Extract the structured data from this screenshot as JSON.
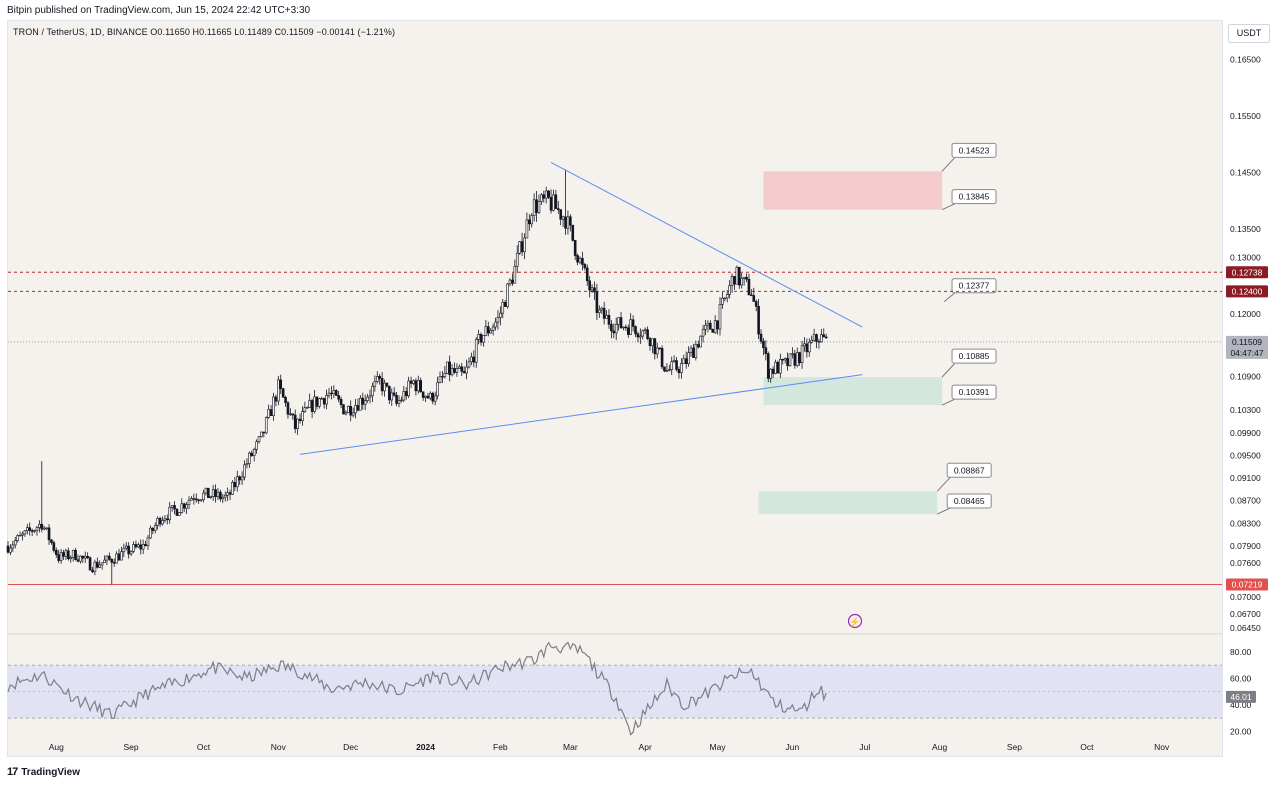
{
  "publisher_line": "Bitpin published on TradingView.com, Jun 15, 2024 22:42 UTC+3:30",
  "legend": "TRON / TetherUS, 1D, BINANCE  O0.11650  H0.11665  L0.11489  C0.11509  −0.00141 (−1.21%)",
  "currency_button": "USDT",
  "footer_logo": "17",
  "footer_brand": "TradingView",
  "colors": {
    "up": "#131722",
    "down": "#131722",
    "trendline": "#5b8def",
    "supply_zone": "#f4c7c9",
    "demand_zone": "#cfe5dc",
    "rsi_band": "#e1e2f3",
    "rsi_line": "#7e7e87",
    "level_dashed": "#b22833",
    "support_line": "#e25050"
  },
  "chart_data": [
    {
      "type": "candlestick",
      "title": "TRON / TetherUS, 1D, BINANCE",
      "ylim": [
        0.0638,
        0.1718
      ],
      "y_ticks": [
        "0.16500",
        "0.15500",
        "0.14500",
        "0.13500",
        "0.13000",
        "0.12000",
        "0.10900",
        "0.10300",
        "0.09900",
        "0.09500",
        "0.09100",
        "0.08700",
        "0.08300",
        "0.07900",
        "0.07600",
        "0.07200",
        "0.07000",
        "0.06700",
        "0.06450"
      ],
      "x_ticks": [
        "Aug",
        "Sep",
        "Oct",
        "Nov",
        "Dec",
        "2024",
        "Feb",
        "Mar",
        "Apr",
        "May",
        "Jun",
        "Jul",
        "Aug",
        "Sep",
        "Oct",
        "Nov"
      ],
      "x_tick_bold": "2024",
      "x_range": [
        "2023-07-12",
        "2024-11-26"
      ],
      "price_series": {
        "dates": [
          "2023-07-12",
          "2023-07-19",
          "2023-07-26",
          "2023-08-02",
          "2023-08-09",
          "2023-08-16",
          "2023-08-23",
          "2023-08-30",
          "2023-09-06",
          "2023-09-13",
          "2023-09-20",
          "2023-09-27",
          "2023-10-04",
          "2023-10-11",
          "2023-10-18",
          "2023-10-25",
          "2023-11-01",
          "2023-11-08",
          "2023-11-15",
          "2023-11-22",
          "2023-11-29",
          "2023-12-06",
          "2023-12-13",
          "2023-12-20",
          "2023-12-27",
          "2024-01-03",
          "2024-01-10",
          "2024-01-17",
          "2024-01-24",
          "2024-01-31",
          "2024-02-07",
          "2024-02-14",
          "2024-02-21",
          "2024-02-28",
          "2024-03-06",
          "2024-03-13",
          "2024-03-20",
          "2024-03-27",
          "2024-04-03",
          "2024-04-10",
          "2024-04-17",
          "2024-04-24",
          "2024-05-01",
          "2024-05-08",
          "2024-05-15",
          "2024-05-22",
          "2024-05-29",
          "2024-06-05",
          "2024-06-12",
          "2024-06-15"
        ],
        "close": [
          0.079,
          0.081,
          0.083,
          0.077,
          0.0775,
          0.0755,
          0.0765,
          0.078,
          0.079,
          0.084,
          0.0855,
          0.088,
          0.088,
          0.0875,
          0.093,
          0.098,
          0.107,
          0.1,
          0.104,
          0.106,
          0.103,
          0.105,
          0.108,
          0.104,
          0.108,
          0.105,
          0.11,
          0.109,
          0.116,
          0.119,
          0.128,
          0.139,
          0.14,
          0.137,
          0.128,
          0.12,
          0.118,
          0.118,
          0.116,
          0.11,
          0.111,
          0.116,
          0.119,
          0.127,
          0.124,
          0.11,
          0.111,
          0.113,
          0.116,
          0.11509
        ]
      },
      "extremes": {
        "spike_high": {
          "date": "2023-07-26",
          "value": 0.094
        },
        "low": {
          "date": "2023-08-24",
          "value": 0.0722
        },
        "top": {
          "date": "2024-02-28",
          "value": 0.1455
        }
      },
      "trendlines": [
        {
          "name": "descending resistance",
          "from": {
            "date": "2024-02-22",
            "value": 0.1468
          },
          "to": {
            "date": "2024-06-30",
            "value": 0.1177
          }
        },
        {
          "name": "ascending support",
          "from": {
            "date": "2023-11-10",
            "value": 0.0952
          },
          "to": {
            "date": "2024-06-30",
            "value": 0.1093
          }
        }
      ],
      "zones": [
        {
          "name": "supply",
          "from": 0.13845,
          "to": 0.14523,
          "start": "2024-05-20",
          "end": "2024-08-02",
          "upper_label": "0.14523",
          "lower_label": "0.13845"
        },
        {
          "name": "demand-1",
          "from": 0.10391,
          "to": 0.10885,
          "start": "2024-05-20",
          "end": "2024-08-02",
          "upper_label": "0.10885",
          "lower_label": "0.10391"
        },
        {
          "name": "demand-2",
          "from": 0.08465,
          "to": 0.08867,
          "start": "2024-05-18",
          "end": "2024-07-31",
          "upper_label": "0.08867",
          "lower_label": "0.08465"
        }
      ],
      "level_labels": [
        {
          "value": 0.12377,
          "label": "0.12377"
        }
      ],
      "horizontal_levels": [
        {
          "value": 0.12738,
          "label": "0.12738",
          "style": "dashed"
        },
        {
          "value": 0.124,
          "label": "0.12400",
          "style": "dashed"
        },
        {
          "value": 0.07219,
          "label": "0.07219",
          "style": "solid"
        }
      ],
      "last_price": {
        "value": 0.11509,
        "label": "0.11509",
        "countdown": "04:47:47"
      }
    },
    {
      "type": "line",
      "title": "RSI",
      "ylim": [
        15,
        92
      ],
      "y_ticks": [
        "80.00",
        "60.00",
        "40.00",
        "20.00"
      ],
      "band": [
        30,
        70
      ],
      "midline": 50,
      "last_value": {
        "value": 46.01,
        "label": "46.01"
      },
      "series": {
        "dates": [
          "2023-07-12",
          "2023-07-26",
          "2023-08-09",
          "2023-08-24",
          "2023-09-07",
          "2023-09-21",
          "2023-10-05",
          "2023-10-19",
          "2023-11-02",
          "2023-11-09",
          "2023-11-23",
          "2023-12-07",
          "2023-12-21",
          "2024-01-04",
          "2024-01-18",
          "2024-02-01",
          "2024-02-15",
          "2024-02-22",
          "2024-03-06",
          "2024-03-20",
          "2024-03-26",
          "2024-04-10",
          "2024-04-17",
          "2024-04-28",
          "2024-05-08",
          "2024-05-15",
          "2024-05-25",
          "2024-06-05",
          "2024-06-12",
          "2024-06-15"
        ],
        "values": [
          55,
          63,
          45,
          32,
          48,
          58,
          68,
          60,
          70,
          66,
          52,
          57,
          50,
          62,
          55,
          68,
          74,
          85,
          80,
          45,
          20,
          55,
          40,
          50,
          62,
          65,
          40,
          35,
          53,
          46
        ]
      }
    }
  ]
}
